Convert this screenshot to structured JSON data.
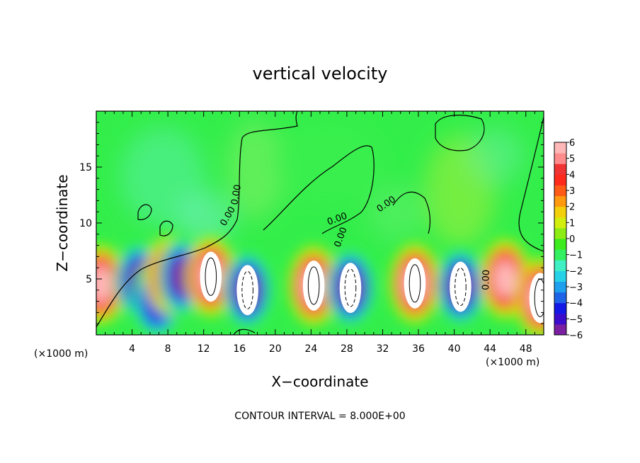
{
  "chart_data": {
    "type": "heatmap",
    "title": "vertical velocity",
    "xlabel": "X−coordinate",
    "ylabel": "Z−coordinate",
    "x_unit_left": "(×1000 m)",
    "x_unit_right": "(×1000 m)",
    "footer": "CONTOUR INTERVAL = 8.000E+00",
    "xlim": [
      0,
      50
    ],
    "ylim": [
      0,
      20
    ],
    "x_ticks": [
      4,
      8,
      12,
      16,
      20,
      24,
      28,
      32,
      36,
      40,
      44,
      48
    ],
    "y_ticks": [
      5,
      10,
      15
    ],
    "contour_labels": [
      "0.00",
      "0.00",
      "0.00",
      "0.00",
      "0.00",
      "0.00"
    ],
    "colorbar": {
      "min": -6,
      "max": 6,
      "tick_labels": [
        "6",
        "5",
        "4",
        "3",
        "2",
        "1",
        "0",
        "−1",
        "−2",
        "−3",
        "−4",
        "−5",
        "−6"
      ],
      "colors": [
        "#7a1fa2",
        "#3b0ccc",
        "#1418e6",
        "#1f64e8",
        "#1ea0ee",
        "#27d2e8",
        "#3ff0c4",
        "#33f060",
        "#3cec1e",
        "#8cec14",
        "#d2ee0e",
        "#f2d00c",
        "#ff9a10",
        "#ff5a16",
        "#ff2a1c",
        "#f03434",
        "#ff8c8c",
        "#ffb8b8"
      ]
    },
    "cells": [
      {
        "x": 0.5,
        "z": 4.5,
        "v": 5.2
      },
      {
        "x": 4.8,
        "z": 4.8,
        "v": -5.5
      },
      {
        "x": 6.8,
        "z": 3.2,
        "v": -4.6
      },
      {
        "x": 8.2,
        "z": 5.3,
        "v": 3.8
      },
      {
        "x": 9.6,
        "z": 5.2,
        "v": -5.2
      },
      {
        "x": 12.8,
        "z": 5.2,
        "v": 6.5
      },
      {
        "x": 16.9,
        "z": 4.0,
        "v": -6.5
      },
      {
        "x": 24.3,
        "z": 4.4,
        "v": 6.5
      },
      {
        "x": 28.4,
        "z": 4.2,
        "v": -6.5
      },
      {
        "x": 35.6,
        "z": 4.6,
        "v": 6.5
      },
      {
        "x": 40.7,
        "z": 4.3,
        "v": -6.5
      },
      {
        "x": 45.7,
        "z": 5.0,
        "v": 5.3
      },
      {
        "x": 49.6,
        "z": 3.3,
        "v": 6.5
      }
    ]
  }
}
